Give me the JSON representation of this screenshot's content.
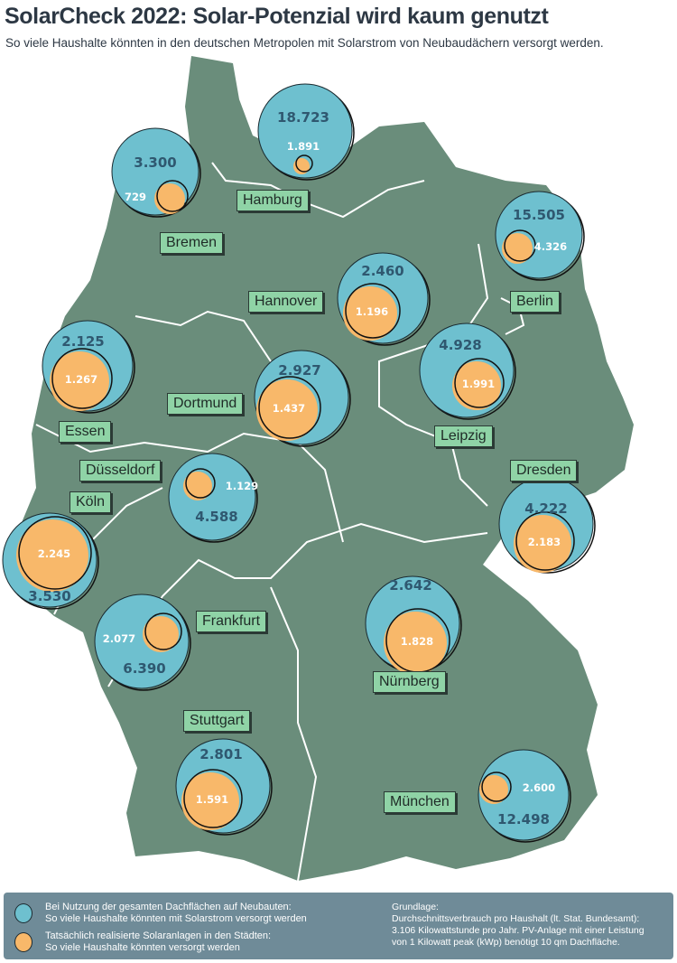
{
  "header": {
    "title": "SolarCheck 2022: Solar-Potenzial wird kaum genutzt",
    "subtitle": "So viele Haushalte könnten in den deutschen Metropolen mit Solarstrom von Neubaudächern versorgt werden."
  },
  "colors": {
    "map": "#6a8d7b",
    "potential": "#6ec0cf",
    "realized": "#f8b86a",
    "label_bg": "#8fd3a6",
    "legend_bg": "#6f8b98"
  },
  "cities": [
    {
      "name": "Hamburg",
      "potential": "18.723",
      "realized": "1.891"
    },
    {
      "name": "Bremen",
      "potential": "3.300",
      "realized": "729"
    },
    {
      "name": "Berlin",
      "potential": "15.505",
      "realized": "4.326"
    },
    {
      "name": "Hannover",
      "potential": "2.460",
      "realized": "1.196"
    },
    {
      "name": "Essen",
      "potential": "2.125",
      "realized": "1.267"
    },
    {
      "name": "Dortmund",
      "potential": "2.927",
      "realized": "1.437"
    },
    {
      "name": "Leipzig",
      "potential": "4.928",
      "realized": "1.991"
    },
    {
      "name": "Düsseldorf",
      "potential": "4.588",
      "realized": "1.129"
    },
    {
      "name": "Köln",
      "potential": "3.530",
      "realized": "2.245"
    },
    {
      "name": "Dresden",
      "potential": "4.222",
      "realized": "2.183"
    },
    {
      "name": "Frankfurt",
      "potential": "6.390",
      "realized": "2.077"
    },
    {
      "name": "Nürnberg",
      "potential": "2.642",
      "realized": "1.828"
    },
    {
      "name": "Stuttgart",
      "potential": "2.801",
      "realized": "1.591"
    },
    {
      "name": "München",
      "potential": "12.498",
      "realized": "2.600"
    }
  ],
  "legend": {
    "potential_line1": "Bei Nutzung der gesamten Dachflächen auf Neubauten:",
    "potential_line2": "So viele Haushalte könnten mit Solarstrom versorgt werden",
    "realized_line1": "Tatsächlich realisierte Solaranlagen in den Städten:",
    "realized_line2": "So viele Haushalte könnten versorgt werden",
    "note_title": "Grundlage:",
    "note_line1": "Durchschnittsverbrauch pro Haushalt (lt. Stat. Bundesamt):",
    "note_line2": "3.106 Kilowattstunde pro Jahr. PV-Anlage mit einer Leistung",
    "note_line3": "von 1 Kilowatt peak (kWp) benötigt 10 qm Dachfläche."
  }
}
